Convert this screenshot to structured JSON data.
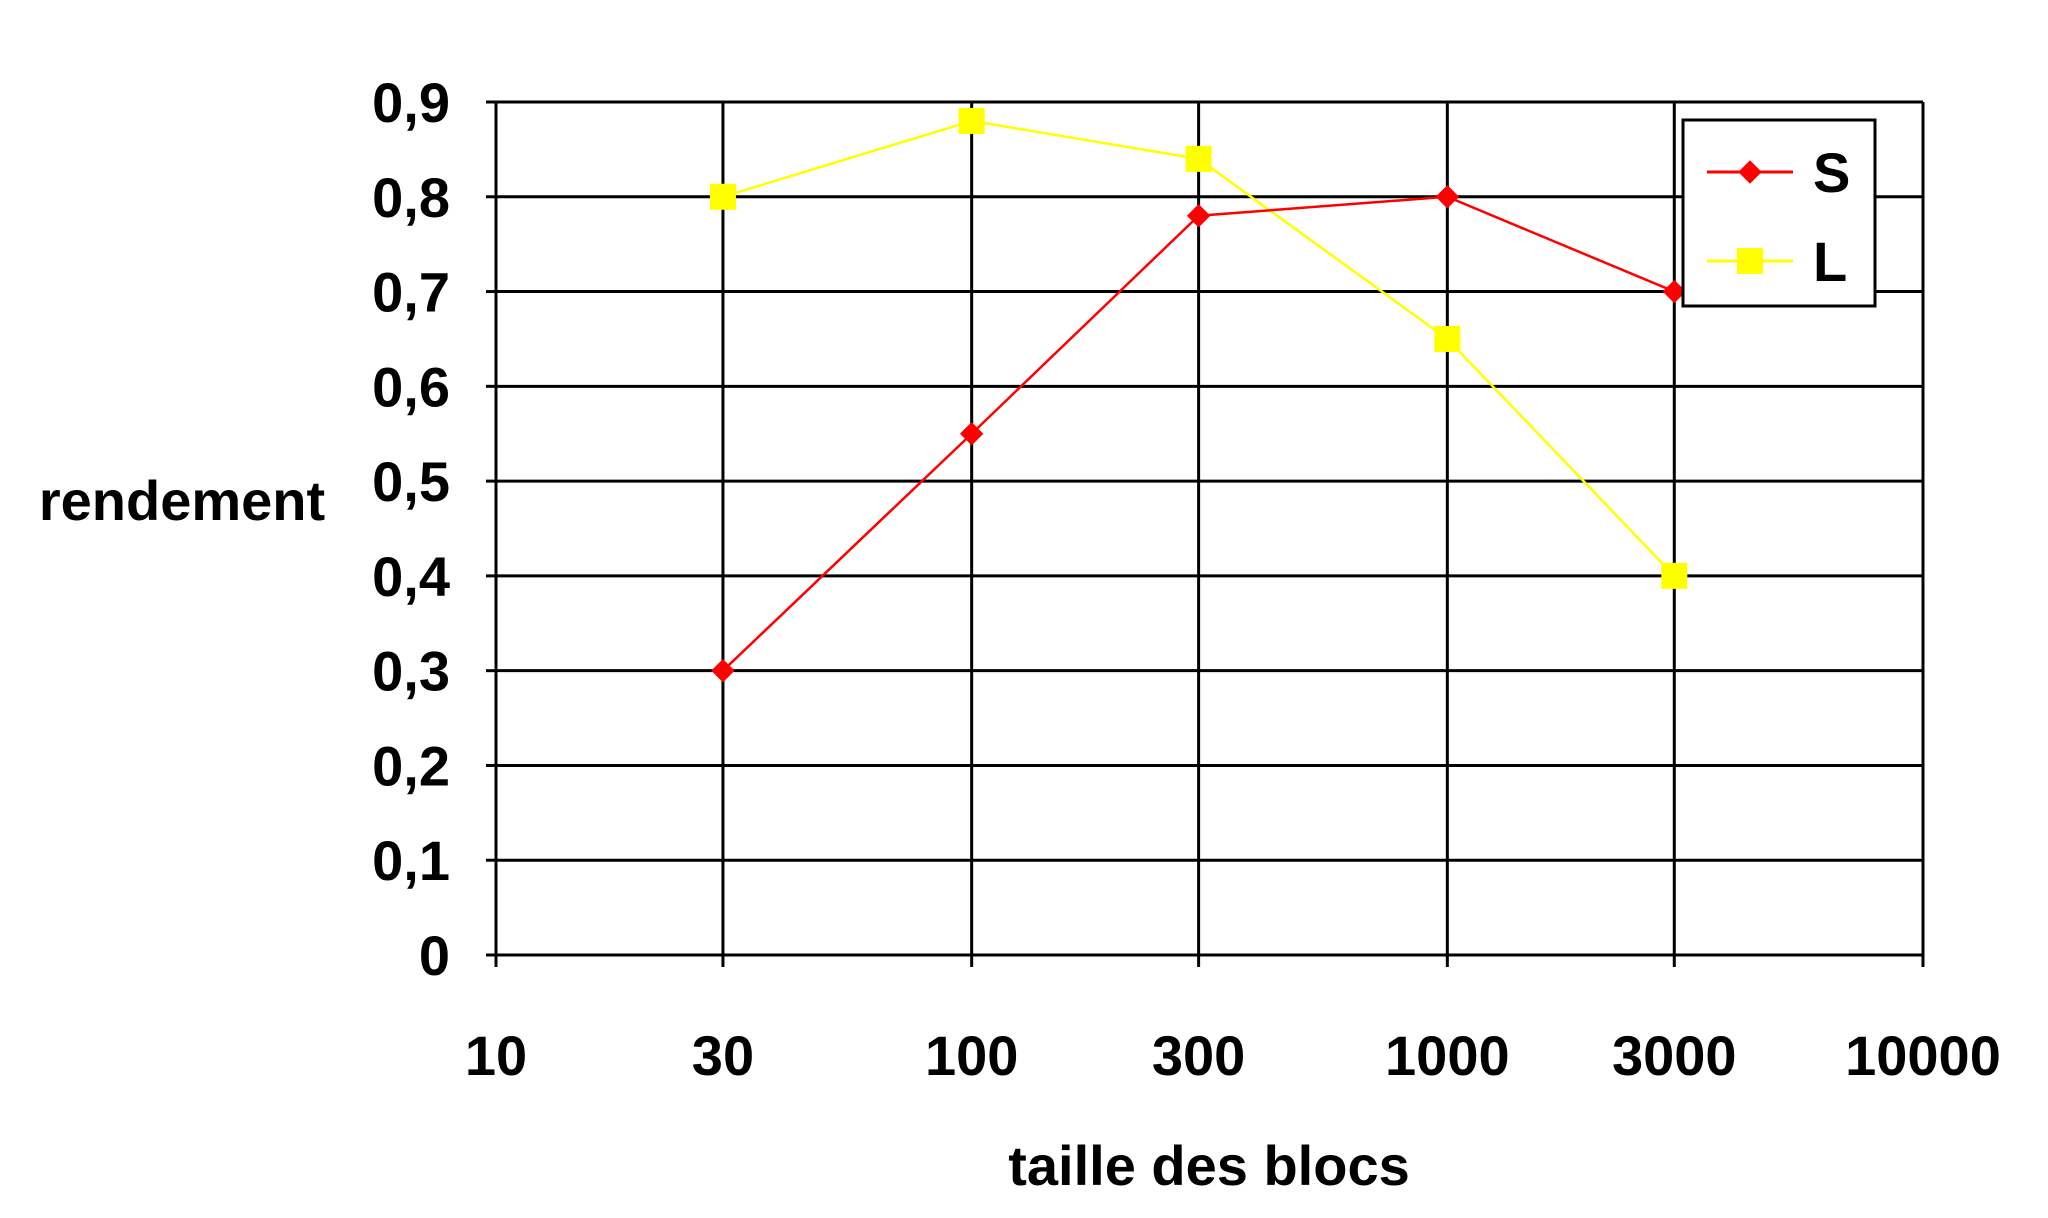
{
  "chart_data": {
    "type": "line",
    "x_scale": "log",
    "x_ticks": [
      10,
      30,
      100,
      300,
      1000,
      3000,
      10000
    ],
    "x_tick_labels": [
      "10",
      "30",
      "100",
      "300",
      "1000",
      "3000",
      "10000"
    ],
    "y_ticks": [
      0,
      0.1,
      0.2,
      0.3,
      0.4,
      0.5,
      0.6,
      0.7,
      0.8,
      0.9
    ],
    "y_tick_labels": [
      "0",
      "0,1",
      "0,2",
      "0,3",
      "0,4",
      "0,5",
      "0,6",
      "0,7",
      "0,8",
      "0,9"
    ],
    "xlim": [
      10,
      10000
    ],
    "ylim": [
      0,
      0.9
    ],
    "xlabel": "taille des blocs",
    "ylabel": "rendement",
    "grid": true,
    "legend_position": "top-right",
    "series": [
      {
        "name": "S",
        "color": "#ff0000",
        "marker": "diamond",
        "x": [
          30,
          100,
          300,
          1000,
          3000
        ],
        "y": [
          0.3,
          0.55,
          0.78,
          0.8,
          0.7
        ]
      },
      {
        "name": "L",
        "color": "#ffff00",
        "marker": "square",
        "x": [
          30,
          100,
          300,
          1000,
          3000
        ],
        "y": [
          0.8,
          0.88,
          0.84,
          0.65,
          0.4
        ]
      }
    ]
  }
}
